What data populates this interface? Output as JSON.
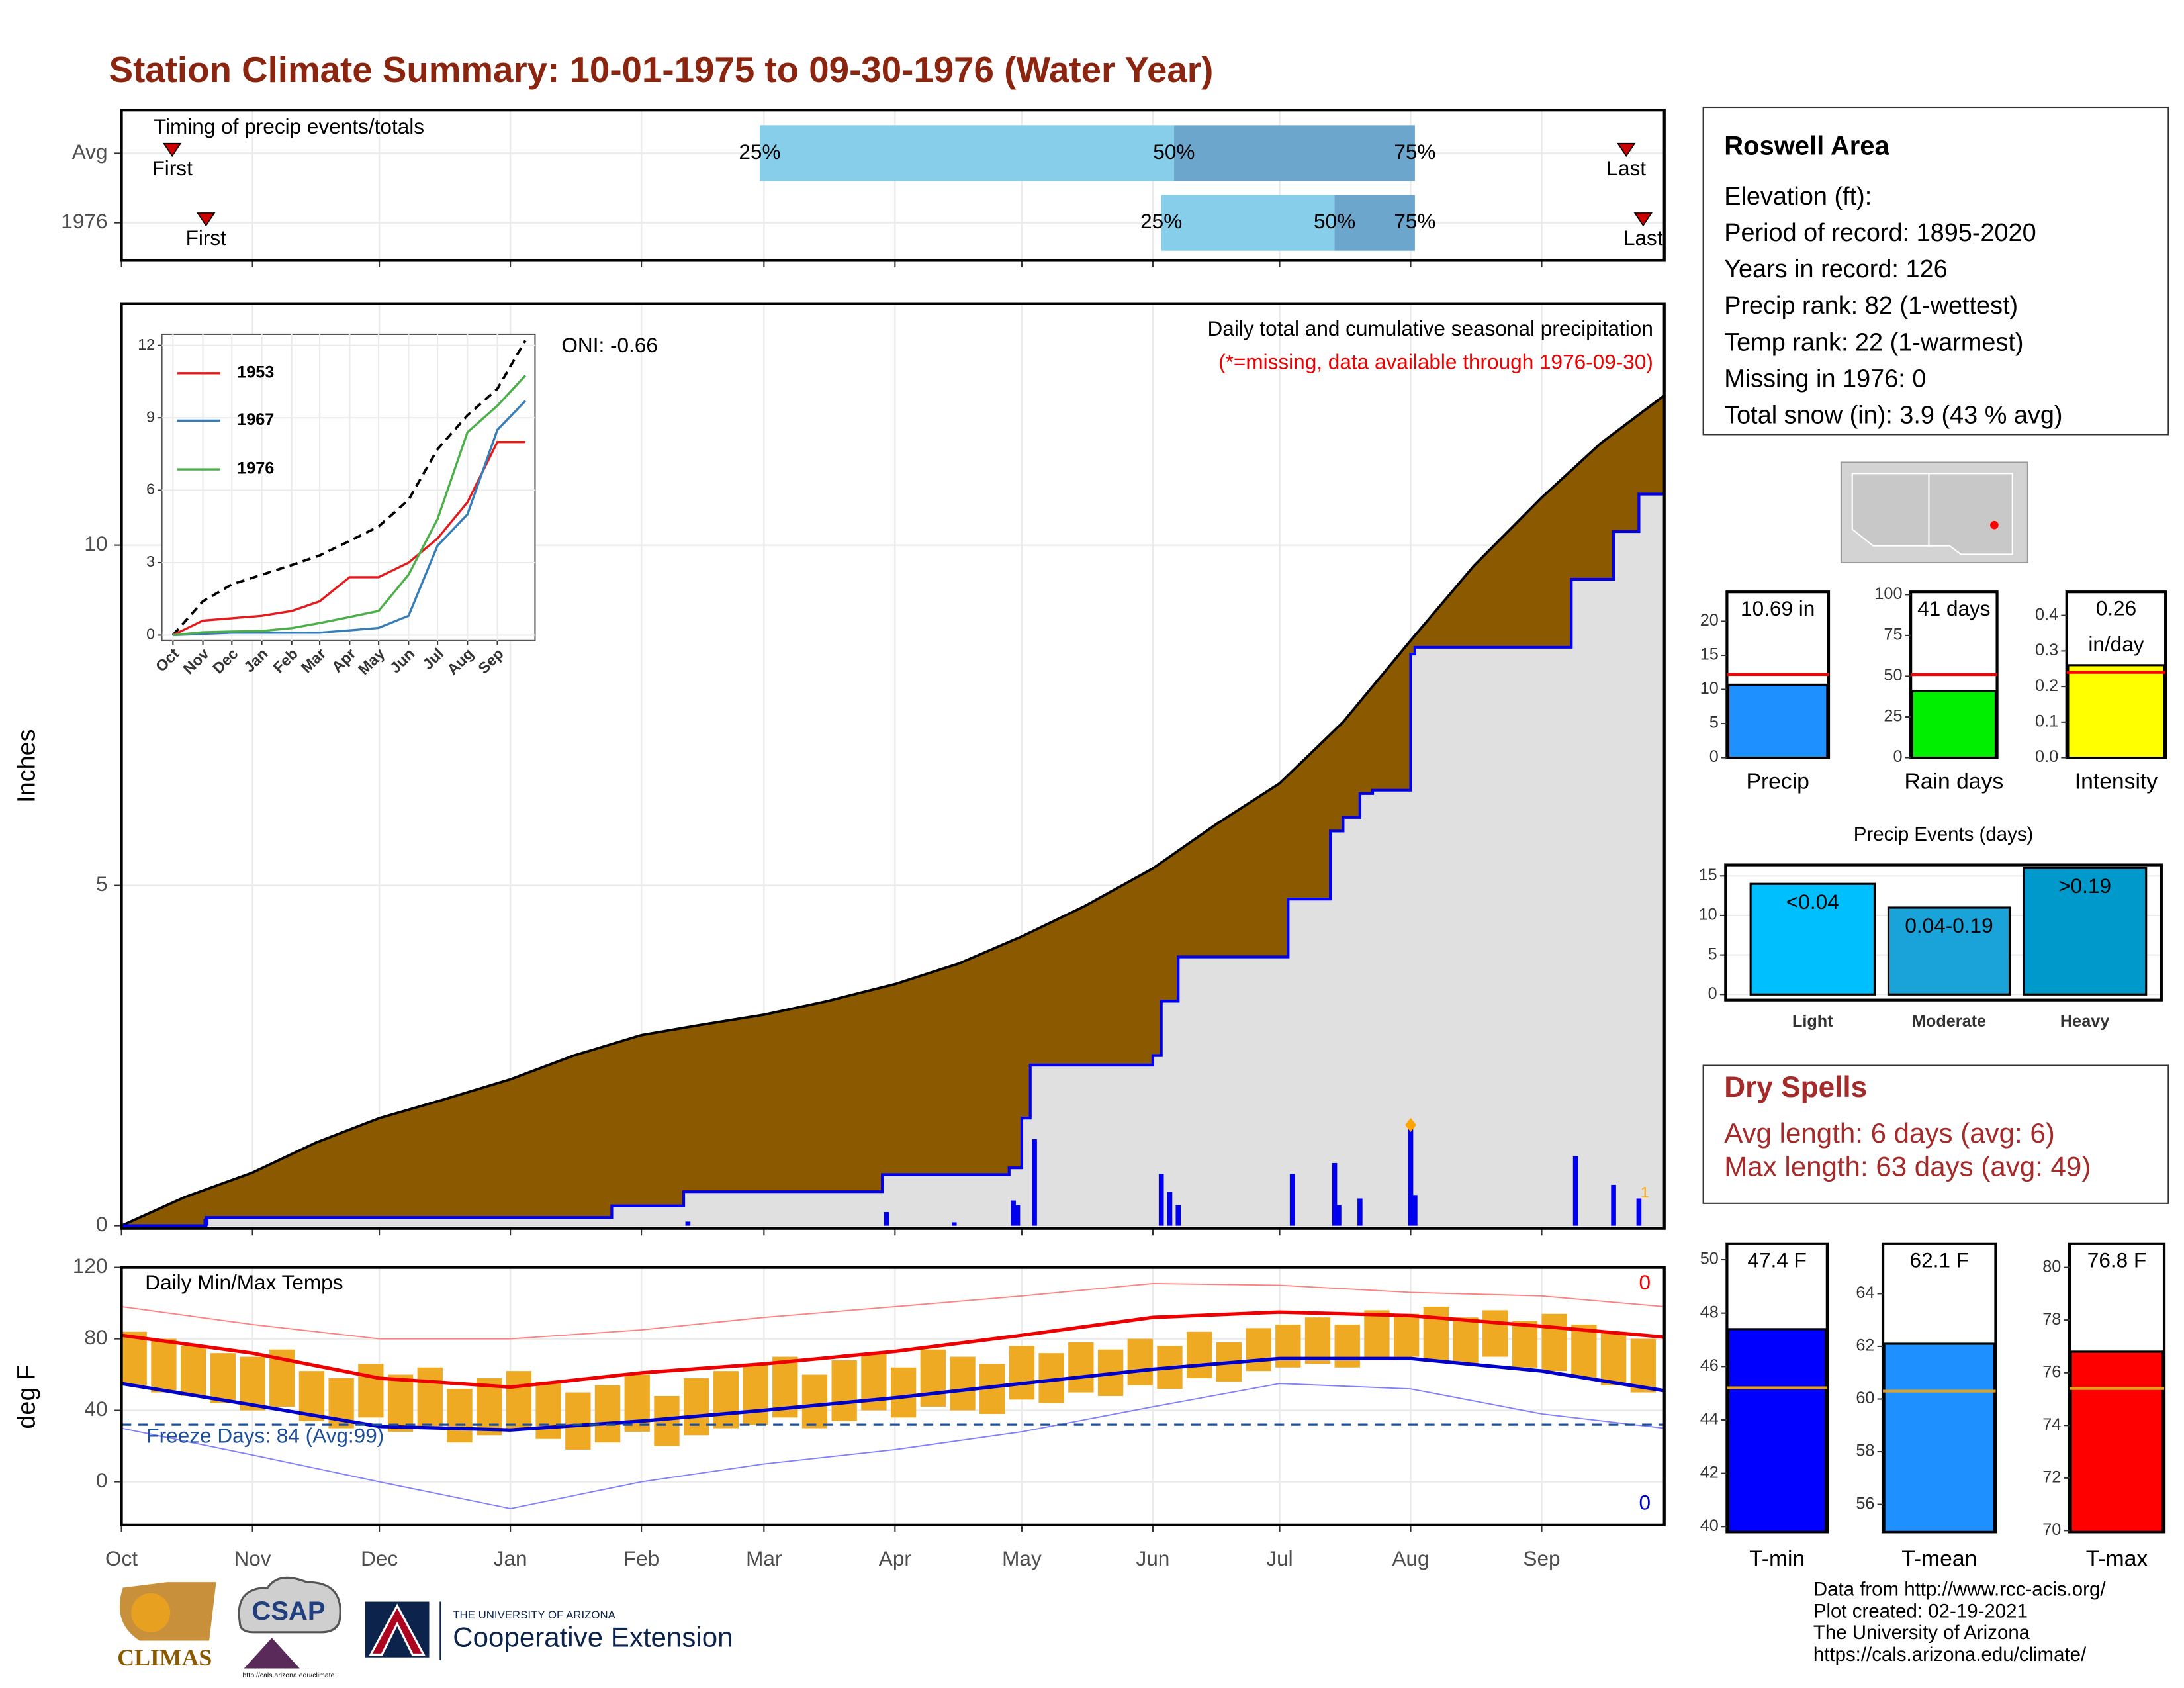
{
  "title": "Station Climate Summary: 10-01-1975 to 09-30-1976 (Water Year)",
  "chart_data": [
    {
      "type": "timing",
      "title": "Timing of precip events/totals",
      "xlim": [
        0,
        365
      ],
      "xticks": [
        0,
        31,
        61,
        92,
        123,
        152,
        183,
        213,
        244,
        274,
        305,
        336
      ],
      "rows": [
        {
          "name": "Avg",
          "first": 12,
          "p25": 151,
          "p50": 249,
          "p75": 306,
          "last": 356
        },
        {
          "name": "1976",
          "first": 20,
          "p25": 246,
          "p50": 287,
          "p75": 306,
          "last": 360
        }
      ],
      "first_label": "First",
      "last_label": "Last",
      "quantile_labels": [
        "25%",
        "50%",
        "75%"
      ],
      "colors": [
        "#87ceeb",
        "#6ca6cd"
      ],
      "marker_color": "#cc0000"
    },
    {
      "type": "cumulative",
      "title": "Daily total and cumulative seasonal precipitation",
      "subtitle": "(*=missing, data available through 1976-09-30)",
      "annotation": "ONI: -0.66",
      "marker_label": "1",
      "ylabel": "Inches",
      "xlim": [
        0,
        365
      ],
      "ylim": [
        -0.04,
        13.55
      ],
      "yticks": [
        0,
        5,
        10
      ],
      "xticks": [
        0,
        31,
        61,
        92,
        123,
        152,
        183,
        213,
        244,
        274,
        305,
        336
      ],
      "grid": true,
      "average": {
        "color": "#8b5a00",
        "x": [
          0,
          15,
          31,
          46,
          61,
          76,
          92,
          107,
          123,
          137,
          152,
          167,
          183,
          198,
          213,
          228,
          244,
          259,
          274,
          289,
          305,
          320,
          336,
          350,
          365
        ],
        "values": [
          0,
          0.42,
          0.78,
          1.22,
          1.58,
          1.85,
          2.15,
          2.5,
          2.8,
          2.95,
          3.1,
          3.3,
          3.55,
          3.85,
          4.25,
          4.7,
          5.25,
          5.9,
          6.5,
          7.4,
          8.6,
          9.7,
          10.7,
          11.5,
          12.2
        ]
      },
      "cumulative": {
        "color": "#0000ee",
        "fill": "#e0e0e0",
        "x": [
          0,
          20,
          116,
          133,
          180,
          210,
          213,
          215,
          244,
          246,
          250,
          276,
          286,
          289,
          293,
          296,
          305,
          306,
          343,
          353,
          359,
          365
        ],
        "values": [
          0,
          0.12,
          0.29,
          0.5,
          0.75,
          0.85,
          1.58,
          2.36,
          2.5,
          3.3,
          3.95,
          4.8,
          5.8,
          6.0,
          6.35,
          6.4,
          8.4,
          8.5,
          9.5,
          10.2,
          10.75,
          10.75
        ]
      },
      "daily": {
        "color": "#0000ee",
        "x": [
          20,
          134,
          181,
          197,
          211,
          212,
          216,
          246,
          248,
          250,
          277,
          287,
          288,
          293,
          305,
          306,
          344,
          353,
          359
        ],
        "values": [
          0.1,
          0.06,
          0.2,
          0.05,
          0.37,
          0.3,
          1.27,
          0.76,
          0.5,
          0.3,
          0.76,
          0.92,
          0.3,
          0.4,
          1.48,
          0.45,
          1.02,
          0.6,
          0.4
        ]
      },
      "max_marker": {
        "x": 305,
        "value": 1.48,
        "color": "#ffa500"
      }
    },
    {
      "type": "line",
      "xlim": [
        -11.5,
        375
      ],
      "ylim": [
        -0.23,
        12.46
      ],
      "yticks": [
        0,
        3,
        6,
        9,
        12
      ],
      "xticks": [
        {
          "value": 0,
          "label": "Oct"
        },
        {
          "value": 31,
          "label": "Nov"
        },
        {
          "value": 61,
          "label": "Dec"
        },
        {
          "value": 92,
          "label": "Jan"
        },
        {
          "value": 123,
          "label": "Feb"
        },
        {
          "value": 152,
          "label": "Mar"
        },
        {
          "value": 183,
          "label": "Apr"
        },
        {
          "value": 213,
          "label": "May"
        },
        {
          "value": 244,
          "label": "Jun"
        },
        {
          "value": 274,
          "label": "Jul"
        },
        {
          "value": 305,
          "label": "Aug"
        },
        {
          "value": 336,
          "label": "Sep"
        }
      ],
      "x": [
        0,
        31,
        61,
        92,
        123,
        152,
        183,
        213,
        244,
        274,
        305,
        336,
        365
      ],
      "average": {
        "color": "#000000",
        "values": [
          0,
          1.4,
          2.1,
          2.5,
          2.9,
          3.3,
          3.9,
          4.5,
          5.6,
          7.7,
          9.1,
          10.2,
          12.2
        ]
      },
      "series": [
        {
          "name": "1953",
          "color": "#e41a1c",
          "values": [
            0,
            0.6,
            0.7,
            0.8,
            1.0,
            1.4,
            2.4,
            2.4,
            3.0,
            4.0,
            5.5,
            8.0,
            8.0
          ]
        },
        {
          "name": "1967",
          "color": "#377eb8",
          "values": [
            0,
            0.05,
            0.1,
            0.1,
            0.1,
            0.1,
            0.2,
            0.3,
            0.8,
            3.7,
            5.0,
            8.5,
            9.7
          ]
        },
        {
          "name": "1976",
          "color": "#4daf4a",
          "values": [
            0,
            0.12,
            0.15,
            0.17,
            0.29,
            0.5,
            0.75,
            1.0,
            2.5,
            4.8,
            8.4,
            9.5,
            10.75
          ]
        }
      ]
    },
    {
      "type": "temps",
      "title": "Daily Min/Max Temps",
      "ylabel": "deg F",
      "xlim": [
        0,
        365
      ],
      "ylim": [
        -24.2,
        120
      ],
      "yticks": [
        0,
        40,
        80,
        120
      ],
      "xticks": [
        {
          "value": 0,
          "label": "Oct"
        },
        {
          "value": 31,
          "label": "Nov"
        },
        {
          "value": 61,
          "label": "Dec"
        },
        {
          "value": 92,
          "label": "Jan"
        },
        {
          "value": 123,
          "label": "Feb"
        },
        {
          "value": 152,
          "label": "Mar"
        },
        {
          "value": 183,
          "label": "Apr"
        },
        {
          "value": 213,
          "label": "May"
        },
        {
          "value": 244,
          "label": "Jun"
        },
        {
          "value": 274,
          "label": "Jul"
        },
        {
          "value": 305,
          "label": "Aug"
        },
        {
          "value": 336,
          "label": "Sep"
        }
      ],
      "freeze_line": 32,
      "freeze_label": "Freeze Days: 84 (Avg:99)",
      "record_high_count": 0,
      "record_low_count": 0,
      "x": [
        0,
        31,
        61,
        92,
        123,
        152,
        183,
        213,
        244,
        274,
        305,
        336,
        365
      ],
      "avg_max": {
        "color": "#ee0000",
        "values": [
          82,
          72,
          58,
          53,
          61,
          66,
          73,
          82,
          92,
          95,
          93,
          87,
          81
        ]
      },
      "avg_min": {
        "color": "#0000cc",
        "values": [
          55,
          43,
          31,
          29,
          34,
          40,
          47,
          55,
          63,
          69,
          69,
          62,
          51
        ]
      },
      "record_max": {
        "color": "#ff8080",
        "values": [
          98,
          88,
          80,
          80,
          85,
          92,
          98,
          104,
          111,
          110,
          106,
          104,
          98
        ]
      },
      "record_min": {
        "color": "#8080ff",
        "values": [
          30,
          15,
          0,
          -15,
          0,
          10,
          18,
          28,
          42,
          55,
          52,
          38,
          30
        ]
      },
      "daily": {
        "color": "#eeaa22",
        "x": [
          0,
          7,
          14,
          21,
          28,
          35,
          42,
          49,
          56,
          63,
          70,
          77,
          84,
          91,
          98,
          105,
          112,
          119,
          126,
          133,
          140,
          147,
          154,
          161,
          168,
          175,
          182,
          189,
          196,
          203,
          210,
          217,
          224,
          231,
          238,
          245,
          252,
          259,
          266,
          273,
          280,
          287,
          294,
          301,
          308,
          315,
          322,
          329,
          336,
          343,
          350,
          357
        ],
        "max": [
          84,
          80,
          76,
          72,
          70,
          74,
          62,
          58,
          66,
          60,
          64,
          52,
          58,
          62,
          56,
          50,
          54,
          60,
          48,
          58,
          62,
          66,
          70,
          60,
          68,
          72,
          64,
          74,
          70,
          66,
          76,
          72,
          78,
          74,
          80,
          76,
          84,
          78,
          86,
          88,
          92,
          88,
          96,
          94,
          98,
          92,
          96,
          90,
          94,
          88,
          84,
          80
        ],
        "min": [
          54,
          50,
          48,
          44,
          40,
          42,
          34,
          30,
          36,
          28,
          30,
          22,
          26,
          30,
          24,
          18,
          22,
          28,
          20,
          26,
          30,
          32,
          36,
          30,
          34,
          40,
          36,
          42,
          40,
          38,
          46,
          44,
          50,
          48,
          54,
          52,
          58,
          56,
          62,
          64,
          66,
          64,
          68,
          70,
          68,
          66,
          70,
          64,
          62,
          58,
          54,
          50
        ]
      }
    },
    {
      "type": "textbox",
      "title": "Roswell Area",
      "lines": [
        "Elevation (ft):",
        "Period of record: 1895-2020",
        "Years in record: 126",
        "Precip rank: 82 (1-wettest)",
        "Temp rank: 22 (1-warmest)",
        "Missing in 1976: 0",
        "Total snow (in): 3.9 (43 % avg)"
      ]
    },
    {
      "type": "gauge",
      "label": "Precip",
      "value": 10.69,
      "value_label": "10.69 in",
      "average": 12.2,
      "color": "#1e90ff",
      "avg_color": "#ff0000",
      "ylim": [
        0,
        24.3
      ],
      "yticks": [
        0,
        5,
        10,
        15,
        20
      ]
    },
    {
      "type": "gauge",
      "label": "Rain days",
      "value": 41,
      "value_label": "41 days",
      "average": 51,
      "color": "#00ee00",
      "avg_color": "#ff0000",
      "ylim": [
        0,
        101.7
      ],
      "yticks": [
        0,
        25,
        50,
        75,
        100
      ]
    },
    {
      "type": "gauge",
      "label": "Intensity",
      "value": 0.26,
      "value_label": "0.26 in/day",
      "average": 0.24,
      "color": "#ffff00",
      "avg_color": "#ff0000",
      "ylim": [
        0,
        0.466
      ],
      "yticks": [
        {
          "value": 0,
          "label": "0.0"
        },
        0.1,
        0.2,
        0.3,
        0.4
      ]
    },
    {
      "type": "bar",
      "title": "Precip Events (days)",
      "categories": [
        "Light",
        "Moderate",
        "Heavy"
      ],
      "values": [
        14,
        11,
        16
      ],
      "bin_labels": [
        "<0.04",
        "0.04-0.19",
        ">0.19"
      ],
      "colors": [
        "#00bfff",
        "#1aa3d9",
        "#0099cc"
      ],
      "ylim": [
        -0.7,
        16.4
      ],
      "yticks": [
        0,
        5,
        10,
        15
      ]
    },
    {
      "type": "textbox",
      "title": "Dry Spells",
      "color": "#a52a2a",
      "lines": [
        "Avg length: 6 days (avg: 6)",
        "Max length: 63 days (avg: 49)"
      ]
    },
    {
      "type": "gauge",
      "label": "T-min",
      "value": 47.4,
      "value_label": "47.4 F",
      "average": 45.2,
      "color": "#0000ff",
      "avg_color": "#e6a020",
      "ylim": [
        39.8,
        50.6
      ],
      "yticks": [
        40,
        42,
        44,
        46,
        48,
        50
      ]
    },
    {
      "type": "gauge",
      "label": "T-mean",
      "value": 62.1,
      "value_label": "62.1 F",
      "average": 60.3,
      "color": "#1e90ff",
      "avg_color": "#e6a020",
      "ylim": [
        54.95,
        65.9
      ],
      "yticks": [
        56,
        58,
        60,
        62,
        64
      ]
    },
    {
      "type": "gauge",
      "label": "T-max",
      "value": 76.8,
      "value_label": "76.8 F",
      "average": 75.4,
      "color": "#ff0000",
      "avg_color": "#e6a020",
      "ylim": [
        69.95,
        80.9
      ],
      "yticks": [
        70,
        72,
        74,
        76,
        78,
        80
      ]
    }
  ],
  "footer": [
    "Data from http://www.rcc-acis.org/",
    "Plot created: 02-19-2021",
    "The University of Arizona",
    "https://cals.arizona.edu/climate/"
  ],
  "logos": {
    "climas": "CLIMAS",
    "csap": "CSAP",
    "csap_url": "http://cals.arizona.edu/climate",
    "ua": "THE UNIVERSITY OF ARIZONA",
    "coop": "Cooperative Extension"
  }
}
